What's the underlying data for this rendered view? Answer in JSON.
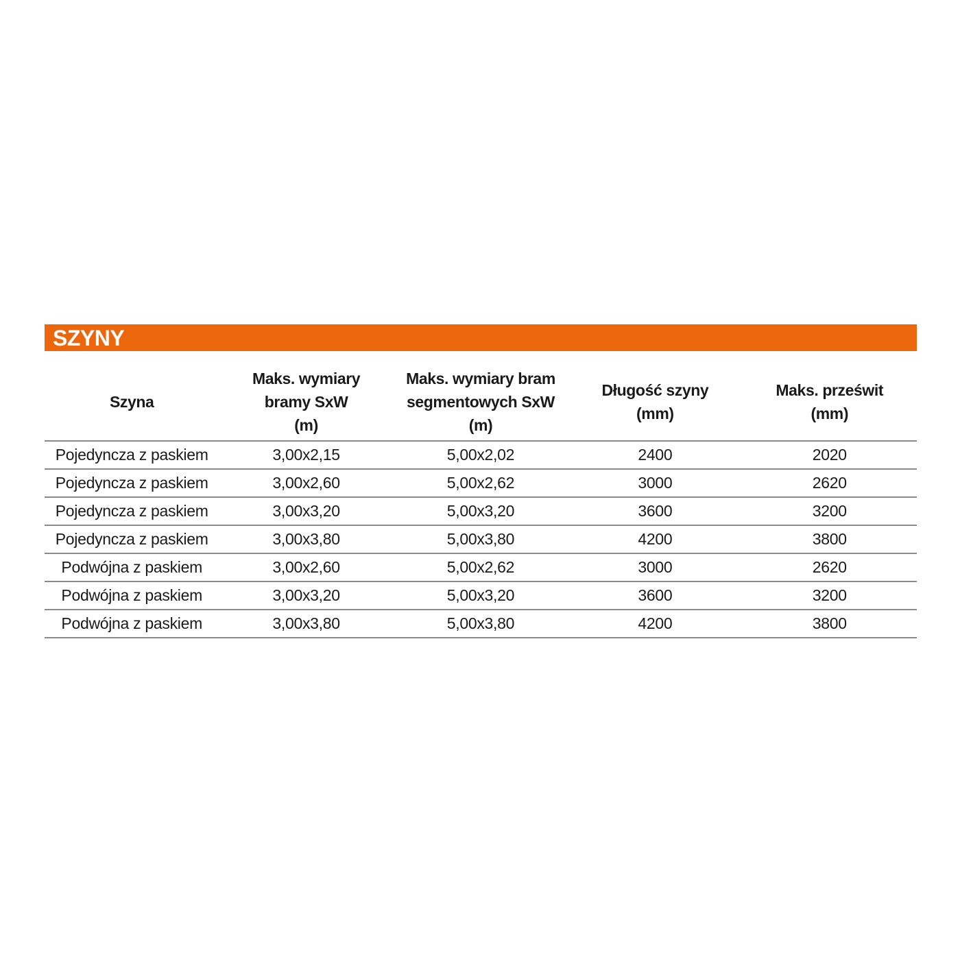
{
  "title": "SZYNY",
  "accent_color": "#ec660b",
  "columns": [
    [
      "Szyna"
    ],
    [
      "Maks. wymiary",
      "bramy SxW",
      "(m)"
    ],
    [
      "Maks. wymiary bram",
      "segmentowych SxW",
      "(m)"
    ],
    [
      "Długość szyny",
      "(mm)"
    ],
    [
      "Maks. prześwit",
      "(mm)"
    ]
  ],
  "rows": [
    [
      "Pojedyncza z paskiem",
      "3,00x2,15",
      "5,00x2,02",
      "2400",
      "2020"
    ],
    [
      "Pojedyncza z paskiem",
      "3,00x2,60",
      "5,00x2,62",
      "3000",
      "2620"
    ],
    [
      "Pojedyncza z paskiem",
      "3,00x3,20",
      "5,00x3,20",
      "3600",
      "3200"
    ],
    [
      "Pojedyncza z paskiem",
      "3,00x3,80",
      "5,00x3,80",
      "4200",
      "3800"
    ],
    [
      "Podwójna z paskiem",
      "3,00x2,60",
      "5,00x2,62",
      "3000",
      "2620"
    ],
    [
      "Podwójna z paskiem",
      "3,00x3,20",
      "5,00x3,20",
      "3600",
      "3200"
    ],
    [
      "Podwójna z paskiem",
      "3,00x3,80",
      "5,00x3,80",
      "4200",
      "3800"
    ]
  ]
}
